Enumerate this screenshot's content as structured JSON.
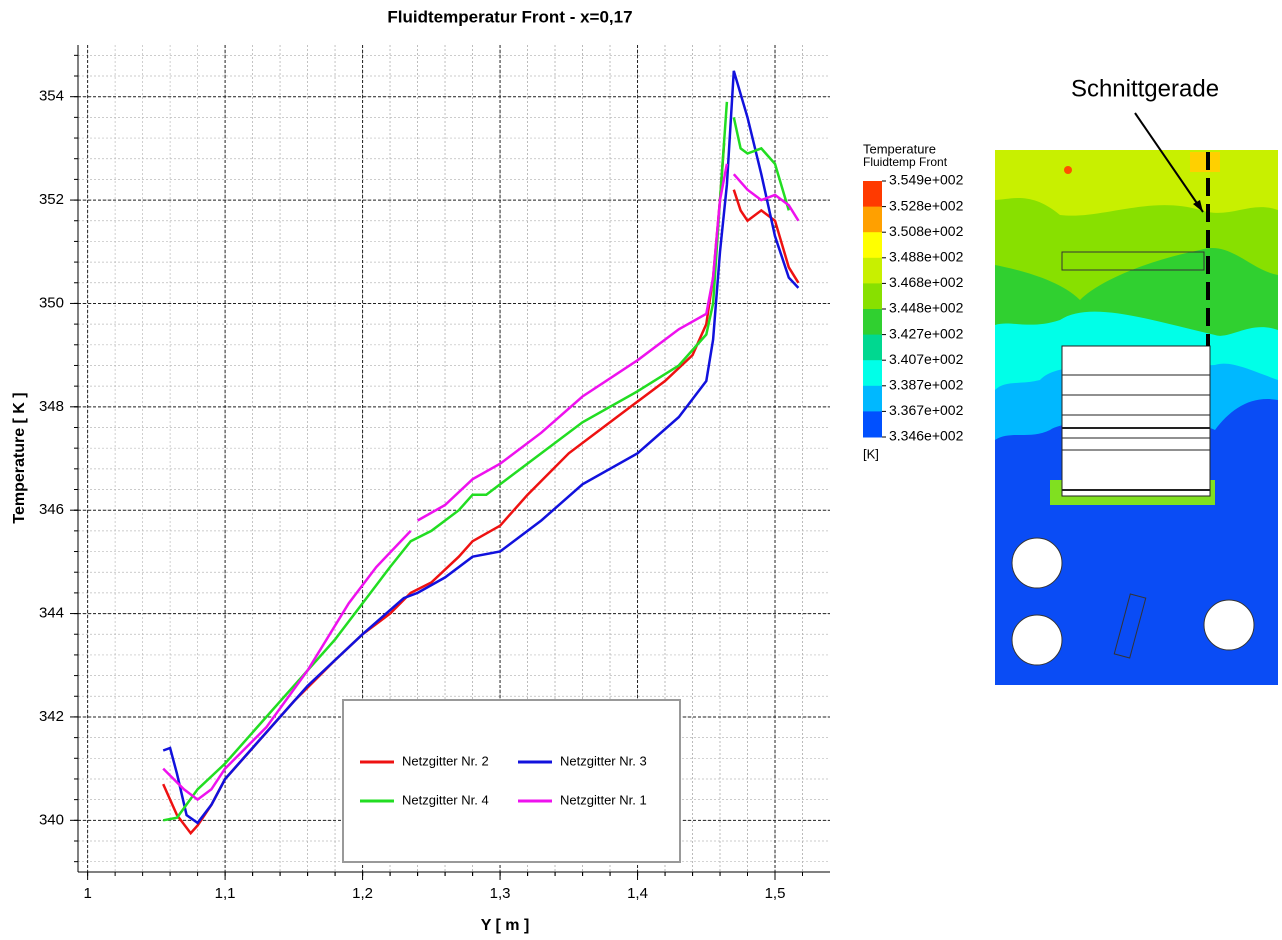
{
  "chart_data": {
    "type": "line",
    "title": "Fluidtemperatur Front - x=0,17",
    "xlabel": "Y [ m ]",
    "ylabel": "Temperature [ K ]",
    "xlim": [
      0.993,
      1.54
    ],
    "ylim": [
      339,
      355
    ],
    "xticks": [
      {
        "value": 1,
        "label": "1"
      },
      {
        "value": 1.1,
        "label": "1,1"
      },
      {
        "value": 1.2,
        "label": "1,2"
      },
      {
        "value": 1.3,
        "label": "1,3"
      },
      {
        "value": 1.4,
        "label": "1,4"
      },
      {
        "value": 1.5,
        "label": "1,5"
      }
    ],
    "yticks": [
      340,
      342,
      344,
      346,
      348,
      350,
      352,
      354
    ],
    "grid": true,
    "legend": "lower-center",
    "series": [
      {
        "name": "Netzgitter Nr. 2",
        "color": "#ee1111",
        "x": [
          1.055,
          1.065,
          1.075,
          1.08,
          1.09,
          1.1,
          1.12,
          1.15,
          1.18,
          1.2,
          1.22,
          1.235,
          1.25,
          1.27,
          1.28,
          1.3,
          1.32,
          1.35,
          1.38,
          1.4,
          1.42,
          1.44,
          1.45,
          1.455,
          1.46,
          1.463,
          null,
          1.47,
          1.475,
          1.48,
          1.49,
          1.5,
          1.51,
          1.517
        ],
        "values": [
          340.7,
          340.1,
          339.75,
          339.9,
          340.3,
          340.8,
          341.4,
          342.3,
          343.1,
          343.6,
          344.0,
          344.4,
          344.6,
          345.1,
          345.4,
          345.7,
          346.3,
          347.1,
          347.7,
          348.1,
          348.5,
          349.0,
          349.6,
          350.5,
          352.0,
          353.1,
          null,
          352.2,
          351.8,
          351.6,
          351.8,
          351.6,
          350.7,
          350.4
        ]
      },
      {
        "name": "Netzgitter Nr. 3",
        "color": "#1111dd",
        "x": [
          1.055,
          1.06,
          1.065,
          1.072,
          1.08,
          1.09,
          1.1,
          1.13,
          1.16,
          1.2,
          1.23,
          1.24,
          1.26,
          1.28,
          1.3,
          1.33,
          1.36,
          1.4,
          1.43,
          1.45,
          1.455,
          1.46,
          1.465,
          1.47,
          1.48,
          1.49,
          1.5,
          1.51,
          1.517
        ],
        "values": [
          341.35,
          341.4,
          340.9,
          340.1,
          339.95,
          340.3,
          340.8,
          341.7,
          342.6,
          343.6,
          344.3,
          344.4,
          344.7,
          345.1,
          345.2,
          345.8,
          346.5,
          347.1,
          347.8,
          348.5,
          349.3,
          351.0,
          352.3,
          354.5,
          353.6,
          352.5,
          351.3,
          350.5,
          350.3
        ]
      },
      {
        "name": "Netzgitter Nr. 4",
        "color": "#22dd22",
        "x": [
          1.055,
          1.065,
          1.08,
          1.1,
          1.12,
          1.15,
          1.18,
          1.2,
          1.22,
          1.235,
          1.25,
          1.27,
          1.28,
          1.29,
          1.3,
          1.33,
          1.36,
          1.4,
          1.43,
          1.45,
          1.455,
          1.46,
          1.465,
          null,
          1.47,
          1.475,
          1.48,
          1.49,
          1.5,
          1.51
        ],
        "values": [
          340.0,
          340.05,
          340.6,
          341.1,
          341.7,
          342.6,
          343.5,
          344.2,
          344.9,
          345.4,
          345.6,
          346.0,
          346.3,
          346.3,
          346.5,
          347.1,
          347.7,
          348.3,
          348.8,
          349.4,
          350.0,
          352.0,
          353.9,
          null,
          353.6,
          353.0,
          352.9,
          353.0,
          352.7,
          351.8
        ]
      },
      {
        "name": "Netzgitter Nr. 1",
        "color": "#ee11ee",
        "x": [
          1.055,
          1.07,
          1.08,
          1.09,
          1.1,
          1.13,
          1.16,
          1.19,
          1.21,
          1.235,
          null,
          1.24,
          1.26,
          1.28,
          1.3,
          1.33,
          1.36,
          1.4,
          1.43,
          1.45,
          1.455,
          1.46,
          1.465,
          null,
          1.47,
          1.48,
          1.49,
          1.5,
          1.51,
          1.517
        ],
        "values": [
          341.0,
          340.6,
          340.4,
          340.6,
          341.0,
          341.8,
          342.9,
          344.2,
          344.9,
          345.6,
          null,
          345.8,
          346.1,
          346.6,
          346.9,
          347.5,
          348.2,
          348.9,
          349.5,
          349.8,
          350.5,
          352.0,
          352.7,
          null,
          352.5,
          352.2,
          352.0,
          352.1,
          351.9,
          351.6
        ]
      }
    ]
  },
  "contour": {
    "annotation": "Schnittgerade",
    "colorbar_title": "Temperature",
    "colorbar_subtitle": "Fluidtemp Front",
    "colorbar_labels": [
      "3.549e+002",
      "3.528e+002",
      "3.508e+002",
      "3.488e+002",
      "3.468e+002",
      "3.448e+002",
      "3.427e+002",
      "3.407e+002",
      "3.387e+002",
      "3.367e+002",
      "3.346e+002"
    ],
    "colorbar_colors": [
      "#ff3a00",
      "#ffa000",
      "#ffff00",
      "#c8f000",
      "#88e000",
      "#30d030",
      "#00d890",
      "#00ffe8",
      "#00b8ff",
      "#0050ff"
    ],
    "unit": "[K]"
  }
}
